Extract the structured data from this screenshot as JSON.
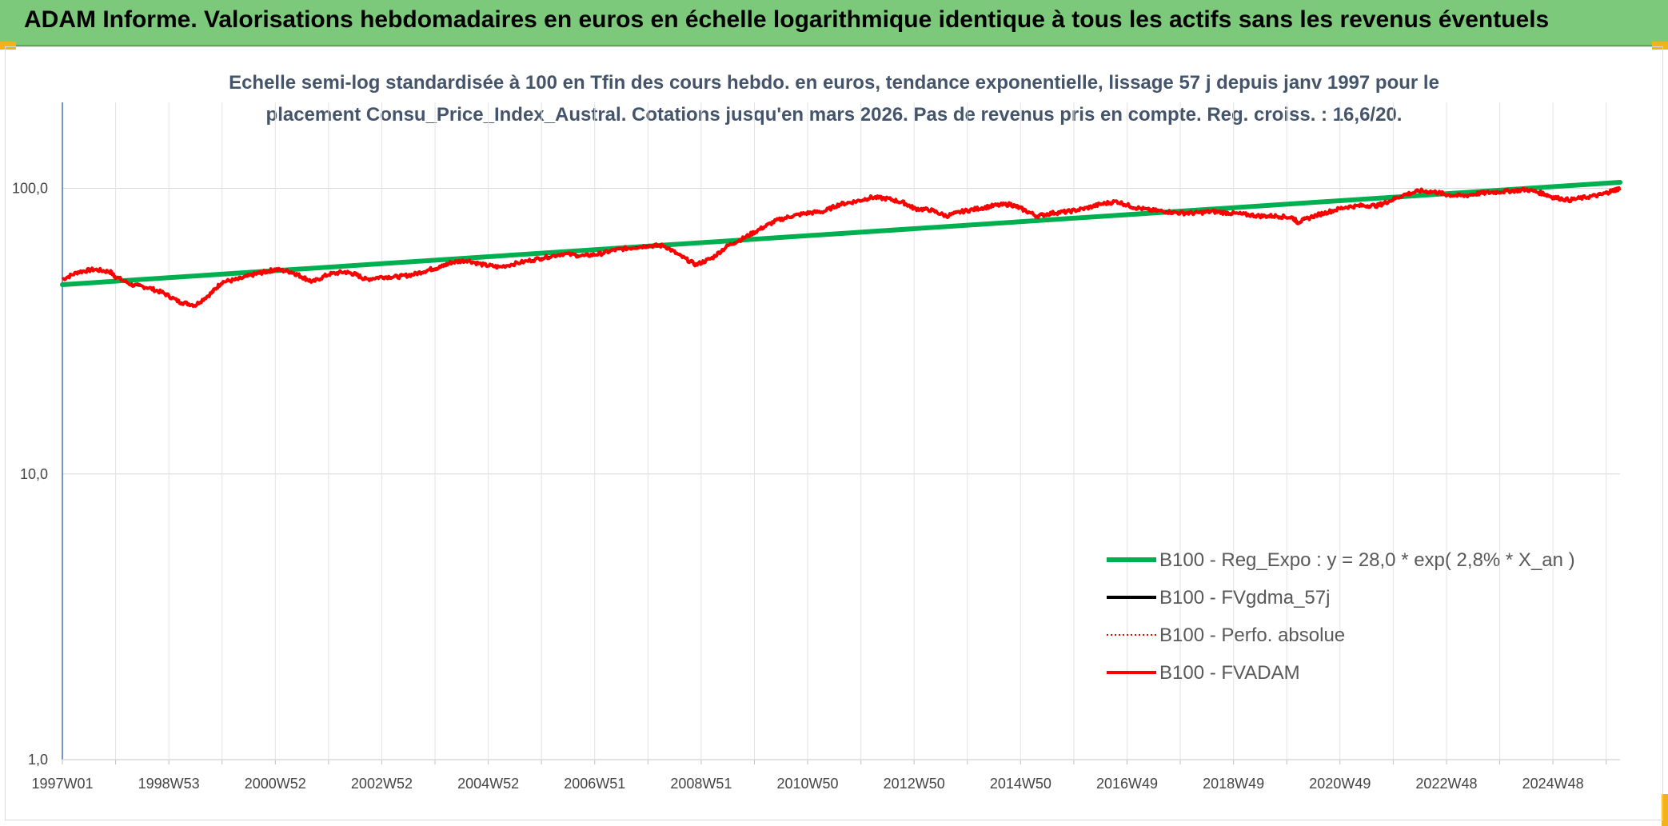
{
  "banner": {
    "title": "ADAM Informe. Valorisations hebdomadaires en euros en échelle logarithmique identique à tous les actifs sans les revenus éventuels",
    "color": "#7dc97b"
  },
  "chart_data": {
    "type": "line",
    "title": "Echelle semi-log standardisée à 100 en Tfin des cours hebdo. en euros, tendance exponentielle, lissage 57 j depuis janv 1997 pour le placement Consu_Price_Index_Austral. Cotations jusqu'en mars 2026. Pas de revenus pris en compte. Reg. croiss. : 16,6/20.",
    "xlabel": "",
    "ylabel": "",
    "y_scale": "log",
    "ylim": [
      1,
      200
    ],
    "y_ticks": [
      "1,0",
      "10,0",
      "100,0"
    ],
    "y_tick_values": [
      1,
      10,
      100
    ],
    "x_tick_labels": [
      "1997W01",
      "1998W53",
      "2000W52",
      "2002W52",
      "2004W52",
      "2006W51",
      "2008W51",
      "2010W50",
      "2012W50",
      "2014W50",
      "2016W49",
      "2018W49",
      "2020W49",
      "2022W48",
      "2024W48"
    ],
    "x_range_years": [
      1997.0,
      2026.25
    ],
    "grid": true,
    "legend_position": "bottom-right",
    "series": [
      {
        "name": "B100 - Reg_Expo : y = 28,0 * exp( 2,8% *  X_an )",
        "color": "#00b050",
        "style": "solid",
        "x": [
          1997.0,
          2026.25
        ],
        "values": [
          46.0,
          105.0
        ]
      },
      {
        "name": "B100 - FVgdma_57j",
        "color": "#000000",
        "style": "solid"
      },
      {
        "name": "B100 - Perfo. absolue",
        "color": "#ff0000",
        "style": "dotted"
      },
      {
        "name": "B100 - FVADAM",
        "color": "#ff0000",
        "style": "solid",
        "x": [
          1997.0,
          1997.3,
          1997.6,
          1997.9,
          1998.0,
          1998.3,
          1998.6,
          1998.9,
          1999.2,
          1999.5,
          1999.8,
          2000.0,
          2000.3,
          2000.6,
          2000.8,
          2001.0,
          2001.3,
          2001.5,
          2001.7,
          2002.0,
          2002.3,
          2002.5,
          2002.7,
          2003.0,
          2003.3,
          2003.6,
          2003.9,
          2004.1,
          2004.3,
          2004.6,
          2004.9,
          2005.2,
          2005.6,
          2006.0,
          2006.4,
          2006.8,
          2007.1,
          2007.4,
          2007.7,
          2008.0,
          2008.3,
          2008.6,
          2008.9,
          2009.2,
          2009.5,
          2009.8,
          2010.1,
          2010.4,
          2010.7,
          2011.0,
          2011.3,
          2011.6,
          2011.9,
          2012.2,
          2012.5,
          2012.8,
          2013.0,
          2013.3,
          2013.6,
          2013.9,
          2014.2,
          2014.5,
          2014.8,
          2015.0,
          2015.3,
          2015.6,
          2015.9,
          2016.2,
          2016.5,
          2016.8,
          2017.1,
          2017.4,
          2017.7,
          2018.0,
          2018.3,
          2018.6,
          2018.9,
          2019.2,
          2019.5,
          2019.8,
          2020.1,
          2020.2,
          2020.5,
          2020.8,
          2021.1,
          2021.4,
          2021.7,
          2021.9,
          2022.2,
          2022.5,
          2022.8,
          2023.0,
          2023.3,
          2023.6,
          2023.9,
          2024.2,
          2024.5,
          2024.8,
          2025.0,
          2025.3,
          2025.6,
          2025.9,
          2026.1,
          2026.25
        ],
        "values": [
          48,
          51,
          52,
          51,
          49,
          46,
          45,
          43,
          40,
          39,
          43,
          47,
          48,
          50,
          51,
          52,
          51,
          49,
          47,
          50,
          51,
          50,
          48,
          49,
          49,
          50,
          52,
          53,
          55,
          56,
          54,
          53,
          55,
          57,
          59,
          58,
          59,
          61,
          62,
          63,
          63,
          58,
          54,
          57,
          63,
          67,
          72,
          77,
          80,
          82,
          83,
          88,
          90,
          93,
          92,
          89,
          85,
          84,
          80,
          83,
          85,
          87,
          88,
          85,
          80,
          82,
          83,
          85,
          88,
          90,
          86,
          84,
          83,
          82,
          82,
          83,
          82,
          81,
          80,
          80,
          79,
          76,
          80,
          83,
          86,
          87,
          87,
          90,
          95,
          98,
          97,
          95,
          94,
          96,
          97,
          98,
          99,
          96,
          93,
          91,
          93,
          95,
          98,
          100
        ]
      }
    ]
  }
}
